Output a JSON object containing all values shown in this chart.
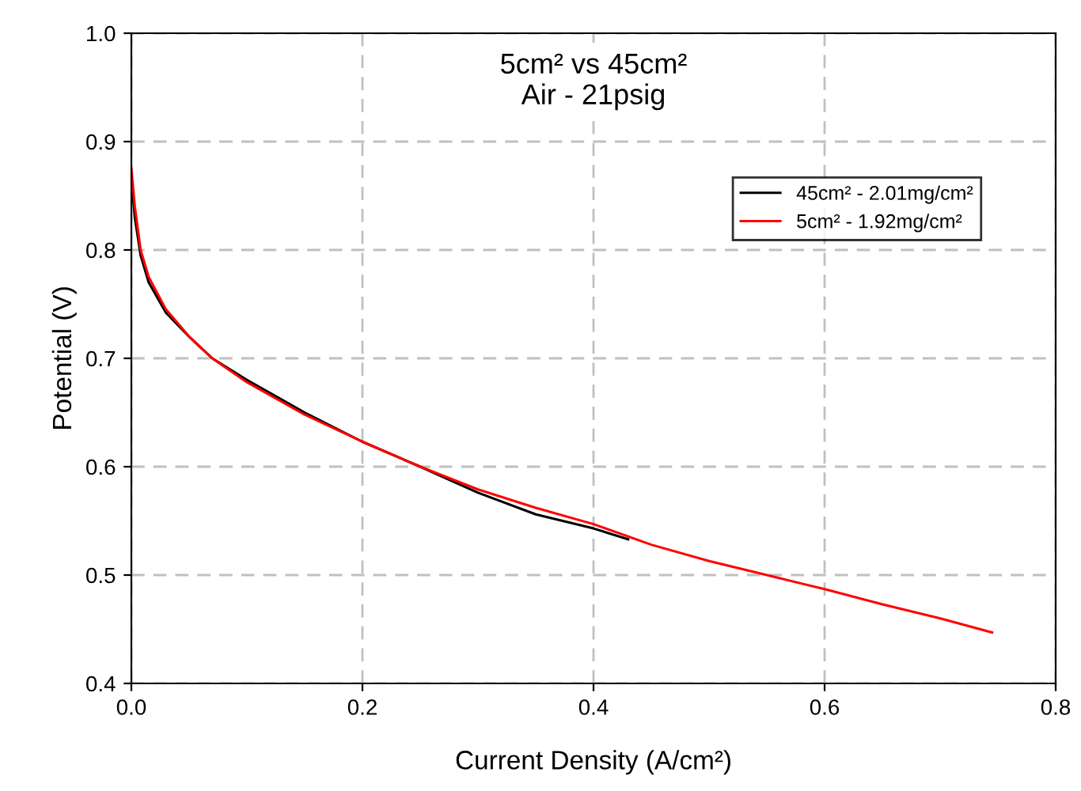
{
  "chart_data": {
    "type": "line",
    "title": "5cm² vs 45cm²\nAir - 21psig",
    "xlabel": "Current Density (A/cm²)",
    "ylabel": "Potential (V)",
    "xlim": [
      0,
      0.8
    ],
    "ylim": [
      0.4,
      1.0
    ],
    "xticks": [
      {
        "value": 0,
        "label": "0.0"
      },
      0.2,
      0.4,
      0.6,
      0.8
    ],
    "yticks": [
      0.4,
      0.5,
      0.6,
      0.7,
      0.8,
      0.9,
      {
        "value": 1,
        "label": "1.0"
      }
    ],
    "grid": true,
    "legend": "right",
    "line_style": "solid",
    "series": [
      {
        "name": "45cm² - 2.01mg/cm²",
        "color": "#000000",
        "x": [
          0,
          0.003,
          0.008,
          0.015,
          0.03,
          0.05,
          0.07,
          0.1,
          0.15,
          0.2,
          0.25,
          0.3,
          0.35,
          0.4,
          0.43
        ],
        "values": [
          0.865,
          0.83,
          0.795,
          0.77,
          0.742,
          0.72,
          0.7,
          0.68,
          0.65,
          0.623,
          0.6,
          0.576,
          0.556,
          0.543,
          0.533
        ]
      },
      {
        "name": "5cm² - 1.92mg/cm²",
        "color": "#ff0000",
        "x": [
          0,
          0.003,
          0.008,
          0.015,
          0.03,
          0.05,
          0.07,
          0.1,
          0.15,
          0.2,
          0.25,
          0.3,
          0.35,
          0.4,
          0.45,
          0.5,
          0.55,
          0.6,
          0.65,
          0.7,
          0.745
        ],
        "values": [
          0.875,
          0.84,
          0.8,
          0.775,
          0.745,
          0.72,
          0.7,
          0.678,
          0.648,
          0.623,
          0.6,
          0.579,
          0.562,
          0.547,
          0.528,
          0.513,
          0.5,
          0.487,
          0.473,
          0.46,
          0.447
        ]
      }
    ]
  }
}
